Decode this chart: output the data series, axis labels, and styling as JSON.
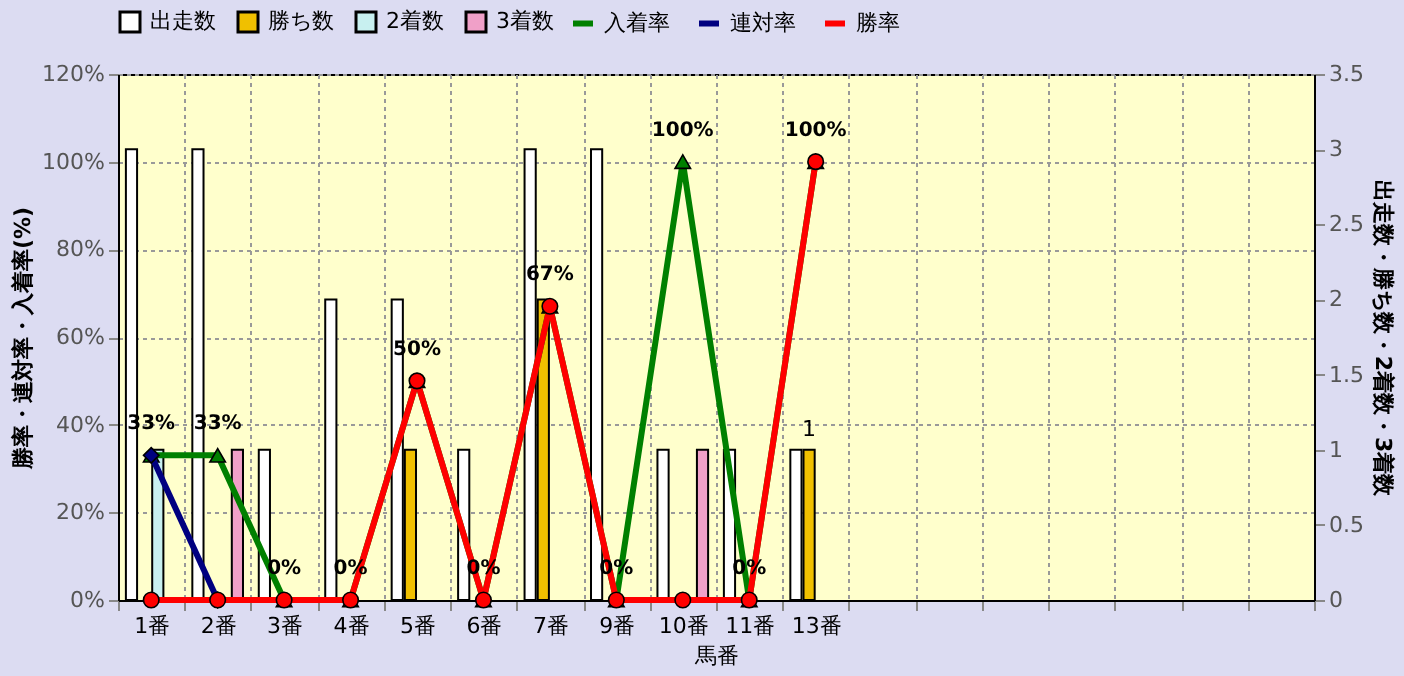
{
  "chart_data": {
    "type": "bar",
    "xlabel": "馬番",
    "ylabel": "勝率・連対率・入着率(%)",
    "y2label": "出走数・勝ち数・2着数・3着数",
    "categories": [
      "1番",
      "2番",
      "3番",
      "4番",
      "5番",
      "6番",
      "7番",
      "9番",
      "10番",
      "11番",
      "13番",
      null,
      null,
      null,
      null,
      null,
      null,
      null
    ],
    "series": [
      {
        "name": "出走数",
        "axis": "y2",
        "color": "#ffffff",
        "values": [
          3,
          3,
          1,
          2,
          2,
          1,
          3,
          3,
          1,
          1,
          1,
          null,
          null,
          null,
          null,
          null,
          null,
          null
        ]
      },
      {
        "name": "勝ち数",
        "axis": "y2",
        "color": "#f0c000",
        "values": [
          null,
          null,
          null,
          null,
          1,
          null,
          2,
          null,
          null,
          null,
          1,
          null,
          null,
          null,
          null,
          null,
          null,
          null
        ],
        "value_labels": [
          null,
          null,
          null,
          null,
          null,
          null,
          null,
          null,
          null,
          null,
          "1",
          null,
          null,
          null,
          null,
          null,
          null,
          null
        ]
      },
      {
        "name": "2着数",
        "axis": "y2",
        "color": "#c8f0f0",
        "values": [
          1,
          null,
          null,
          null,
          null,
          null,
          null,
          null,
          null,
          null,
          null,
          null,
          null,
          null,
          null,
          null,
          null,
          null
        ]
      },
      {
        "name": "3着数",
        "axis": "y2",
        "color": "#f0a0c8",
        "values": [
          null,
          1,
          null,
          null,
          null,
          null,
          null,
          null,
          1,
          null,
          null,
          null,
          null,
          null,
          null,
          null,
          null,
          null
        ]
      },
      {
        "name": "入着率",
        "type": "line",
        "marker": "triangle",
        "color": "#008000",
        "values": [
          33,
          33,
          0,
          0,
          50,
          0,
          67,
          0,
          100,
          0,
          100,
          null,
          null,
          null,
          null,
          null,
          null,
          null
        ],
        "value_labels": [
          "33%",
          "33%",
          "0%",
          "0%",
          "50%",
          "0%",
          "67%",
          "0%",
          "100%",
          "0%",
          "100%",
          null,
          null,
          null,
          null,
          null,
          null,
          null
        ]
      },
      {
        "name": "連対率",
        "type": "line",
        "marker": "diamond",
        "color": "#000080",
        "values": [
          33,
          0,
          null,
          null,
          null,
          null,
          null,
          null,
          null,
          null,
          null,
          null,
          null,
          null,
          null,
          null,
          null,
          null
        ]
      },
      {
        "name": "勝率",
        "type": "line",
        "marker": "circle",
        "color": "#ff0000",
        "values": [
          0,
          0,
          0,
          0,
          50,
          0,
          67,
          0,
          0,
          0,
          100,
          null,
          null,
          null,
          null,
          null,
          null,
          null
        ]
      }
    ],
    "ylim": [
      0,
      120
    ],
    "yticks": [
      {
        "value": 0,
        "label": "0%"
      },
      {
        "value": 20,
        "label": "20%"
      },
      {
        "value": 40,
        "label": "40%"
      },
      {
        "value": 60,
        "label": "60%"
      },
      {
        "value": 80,
        "label": "80%"
      },
      {
        "value": 100,
        "label": "100%"
      },
      {
        "value": 120,
        "label": "120%"
      }
    ],
    "y2lim": [
      0,
      3.5
    ],
    "y2ticks": [
      0,
      0.5,
      1,
      1.5,
      2,
      2.5,
      3,
      3.5
    ],
    "grid": true,
    "legend": "top"
  }
}
